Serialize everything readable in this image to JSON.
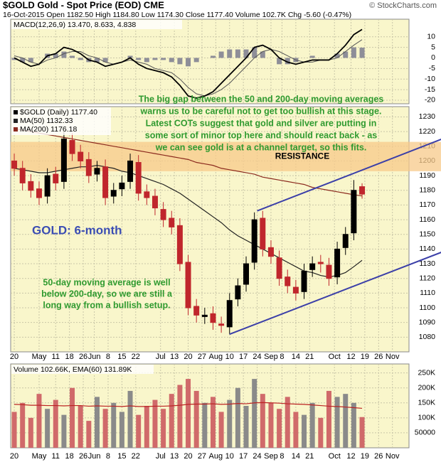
{
  "chart_data": {
    "type": "candlestick",
    "title": "$GOLD Gold - Spot Price (EOD) CME",
    "credit": "© StockCharts.com",
    "subtitle": "16-Oct-2015  Open 1182.50  High 1184.80  Low 1174.30  Close 1177.40  Volume 102.7K  Chg -5.60 (-0.47%)",
    "legend": [
      "$GOLD (Daily) 1177.40",
      "MA(50) 1132.33",
      "MA(200) 1176.18"
    ],
    "annotations": [
      "The big gap between the 50 and 200-day moving averages",
      "warns us to be careful not to get too bullish at this stage.",
      "Latest COTs suggest that gold and silver are putting in",
      "some sort of minor top here and should react back - as",
      "we can see gold is at a channel target, so this fits."
    ],
    "resistance_label": "RESISTANCE",
    "panel_title": "GOLD: 6-month",
    "note": [
      "50-day moving average is well",
      "below 200-day, so we are still a",
      "long way from a bullish setup."
    ],
    "xlim": [
      -1.3,
      143
    ],
    "xticks": [
      {
        "value": 0,
        "label": "20"
      },
      {
        "value": 9,
        "label": "May"
      },
      {
        "value": 15,
        "label": "11"
      },
      {
        "value": 20,
        "label": "18"
      },
      {
        "value": 25,
        "label": "26"
      },
      {
        "value": 29,
        "label": "Jun"
      },
      {
        "value": 34,
        "label": "8"
      },
      {
        "value": 39,
        "label": "15"
      },
      {
        "value": 44,
        "label": "22"
      },
      {
        "value": 53,
        "label": "Jul"
      },
      {
        "value": 58,
        "label": "13"
      },
      {
        "value": 63,
        "label": "20"
      },
      {
        "value": 68,
        "label": "27"
      },
      {
        "value": 73,
        "label": "Aug"
      },
      {
        "value": 78,
        "label": "10"
      },
      {
        "value": 83,
        "label": "17"
      },
      {
        "value": 88,
        "label": "24"
      },
      {
        "value": 93,
        "label": "Sep"
      },
      {
        "value": 97,
        "label": "8"
      },
      {
        "value": 102,
        "label": "14"
      },
      {
        "value": 107,
        "label": "21"
      },
      {
        "value": 116,
        "label": "Oct"
      },
      {
        "value": 122,
        "label": "12"
      },
      {
        "value": 127,
        "label": "19"
      },
      {
        "value": 132,
        "label": "26"
      },
      {
        "value": 137,
        "label": "Nov"
      }
    ],
    "x": [
      0,
      3,
      6,
      9,
      12,
      15,
      18,
      21,
      24,
      27,
      30,
      33,
      36,
      39,
      42,
      45,
      48,
      51,
      54,
      57,
      60,
      63,
      66,
      69,
      72,
      75,
      78,
      81,
      84,
      87,
      90,
      93,
      96,
      99,
      102,
      105,
      108,
      111,
      114,
      117,
      120,
      123,
      126
    ],
    "open": [
      1200,
      1195,
      1186,
      1181,
      1176,
      1191,
      1186,
      1214,
      1206,
      1201,
      1191,
      1196,
      1176,
      1181,
      1186,
      1199,
      1179,
      1176,
      1167,
      1161,
      1156,
      1131,
      1101,
      1094,
      1096,
      1089,
      1087,
      1106,
      1116,
      1131,
      1161,
      1141,
      1134,
      1121,
      1114,
      1111,
      1126,
      1131,
      1129,
      1121,
      1141,
      1151,
      1182.5
    ],
    "high": [
      1205,
      1200,
      1191,
      1186,
      1195,
      1196,
      1220,
      1219,
      1211,
      1206,
      1200,
      1201,
      1185,
      1190,
      1205,
      1204,
      1184,
      1181,
      1172,
      1166,
      1161,
      1136,
      1106,
      1100,
      1101,
      1094,
      1110,
      1120,
      1135,
      1165,
      1166,
      1146,
      1139,
      1126,
      1119,
      1130,
      1135,
      1136,
      1134,
      1145,
      1155,
      1187,
      1184.8
    ],
    "low": [
      1190,
      1180,
      1175,
      1170,
      1171,
      1180,
      1181,
      1200,
      1195,
      1185,
      1186,
      1170,
      1171,
      1176,
      1181,
      1173,
      1170,
      1163,
      1155,
      1150,
      1125,
      1095,
      1090,
      1089,
      1085,
      1083,
      1082,
      1101,
      1111,
      1126,
      1135,
      1130,
      1115,
      1110,
      1105,
      1106,
      1121,
      1124,
      1115,
      1116,
      1136,
      1146,
      1174.3
    ],
    "close": [
      1195,
      1185,
      1180,
      1175,
      1190,
      1185,
      1215,
      1205,
      1200,
      1190,
      1195,
      1175,
      1180,
      1185,
      1200,
      1178,
      1175,
      1168,
      1160,
      1155,
      1130,
      1100,
      1095,
      1095,
      1090,
      1088,
      1105,
      1115,
      1130,
      1160,
      1140,
      1135,
      1120,
      1115,
      1110,
      1125,
      1130,
      1130,
      1120,
      1140,
      1150,
      1180,
      1177.4
    ],
    "up_color": "#000000",
    "down_color": "#c0262c",
    "series": [
      {
        "name": "MA(50)",
        "color": "#222222",
        "values": [
          1195,
          1194,
          1193,
          1192,
          1192,
          1193,
          1194,
          1195,
          1196,
          1196,
          1197,
          1196,
          1195,
          1193,
          1192,
          1190,
          1188,
          1186,
          1184,
          1181,
          1178,
          1174,
          1170,
          1166,
          1162,
          1158,
          1153,
          1149,
          1146,
          1143,
          1140,
          1137,
          1134,
          1131,
          1128,
          1125,
          1124,
          1122,
          1121,
          1122,
          1124,
          1128,
          1132.33
        ]
      },
      {
        "name": "MA(200)",
        "color": "#8b2a1e",
        "values": [
          1222,
          1221,
          1220,
          1219,
          1218,
          1217,
          1216,
          1215,
          1214,
          1213,
          1212,
          1211,
          1210,
          1209,
          1208,
          1207,
          1206,
          1205,
          1204,
          1203,
          1202,
          1201,
          1199,
          1198,
          1197,
          1195,
          1194,
          1193,
          1192,
          1191,
          1189,
          1188,
          1187,
          1186,
          1185,
          1184,
          1182,
          1181,
          1180,
          1179,
          1178,
          1177,
          1176.18
        ]
      }
    ],
    "resistance": [
      1193,
      1213
    ],
    "channels": [
      {
        "x": [
          88,
          155
        ],
        "y": [
          1166,
          1215
        ]
      },
      {
        "x": [
          78,
          155
        ],
        "y": [
          1082,
          1138
        ]
      }
    ],
    "channel_color": "#3b3fa8",
    "ylim": [
      1070,
      1237
    ],
    "yticks": [
      1080,
      1090,
      1100,
      1110,
      1120,
      1130,
      1140,
      1150,
      1160,
      1170,
      1180,
      1190,
      1200,
      1210,
      1220,
      1230
    ],
    "grid": true,
    "macd": {
      "legend": "MACD(12,26,9) 13.470, 8.633, 4.838",
      "macd": [
        0,
        -2,
        -4,
        -3,
        1,
        2,
        5,
        4,
        2,
        -1,
        -2,
        -4,
        -3,
        -2,
        0,
        -3,
        -5,
        -6,
        -7,
        -9,
        -13,
        -18,
        -19,
        -18,
        -16,
        -12,
        -8,
        -4,
        0,
        5,
        6,
        4,
        0,
        -2,
        -3,
        -2,
        -1,
        -1,
        -1,
        2,
        6,
        11,
        13.47
      ],
      "signal": [
        1,
        0,
        -2,
        -3,
        -1,
        0,
        2,
        3,
        3,
        1,
        0,
        -2,
        -3,
        -2,
        -1,
        -2,
        -3,
        -5,
        -6,
        -7,
        -10,
        -14,
        -17,
        -18,
        -17,
        -15,
        -12,
        -8,
        -4,
        0,
        3,
        4,
        3,
        1,
        -1,
        -2,
        -2,
        -1,
        -1,
        0,
        3,
        6,
        8.633
      ],
      "histogram": [
        -1,
        -2,
        -2,
        0,
        2,
        2,
        3,
        1,
        -1,
        -2,
        -2,
        -2,
        0,
        0,
        1,
        -1,
        -2,
        -1,
        -1,
        -2,
        -3,
        -4,
        -2,
        0,
        1,
        3,
        4,
        4,
        4,
        5,
        3,
        0,
        -3,
        -3,
        -2,
        0,
        1,
        0,
        0,
        2,
        3,
        5,
        4.838
      ],
      "ylim": [
        -21.7,
        18.3
      ],
      "yticks": [
        10,
        5,
        0,
        -5,
        -10,
        -15,
        -20
      ]
    },
    "volume": {
      "legend": "Volume 102.66K, EMA(60) 131.89K",
      "values": [
        120000,
        150000,
        100000,
        180000,
        130000,
        160000,
        110000,
        200000,
        140000,
        90000,
        170000,
        130000,
        150000,
        120000,
        190000,
        110000,
        140000,
        160000,
        130000,
        180000,
        210000,
        230000,
        190000,
        150000,
        170000,
        120000,
        160000,
        200000,
        140000,
        230000,
        180000,
        150000,
        130000,
        170000,
        120000,
        110000,
        150000,
        100000,
        190000,
        170000,
        180000,
        150000,
        102660
      ],
      "ema": [
        145000,
        144000,
        142000,
        142000,
        141000,
        141000,
        140000,
        141000,
        141000,
        139000,
        140000,
        139000,
        139000,
        138000,
        140000,
        138000,
        138000,
        139000,
        139000,
        140000,
        142000,
        145000,
        146000,
        146000,
        147000,
        145000,
        146000,
        148000,
        147000,
        150000,
        151000,
        150000,
        149000,
        147000,
        146000,
        145000,
        143000,
        141000,
        139000,
        138000,
        136000,
        134000,
        131890
      ],
      "ylim": [
        0,
        280000
      ],
      "yticks": [
        {
          "value": 250000,
          "label": "250K"
        },
        {
          "value": 200000,
          "label": "200K"
        },
        {
          "value": 150000,
          "label": "150K"
        },
        {
          "value": 100000,
          "label": "100K"
        },
        50000
      ]
    }
  }
}
